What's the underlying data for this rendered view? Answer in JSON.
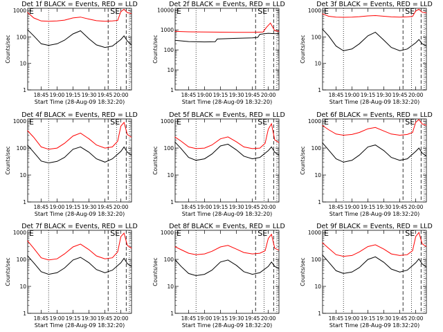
{
  "chart_data": [
    {
      "type": "line",
      "title": "Det 1f BLACK = Events, RED = LLD",
      "xlabel": "Start Time (28-Aug-09 18:32:20)",
      "ylabel": "Counts/sec",
      "xticks": [
        "18:45",
        "19:00",
        "19:15",
        "19:30",
        "19:45",
        "20:00"
      ],
      "yticks": [
        "1",
        "10",
        "100",
        "1000"
      ],
      "ylim": [
        1,
        1200
      ],
      "yscale": "log",
      "annotations": [
        "E",
        "SE"
      ],
      "series": [
        {
          "name": "BLACK = Events",
          "color": "#000000",
          "x": [
            "18:32",
            "18:38",
            "18:45",
            "18:52",
            "19:00",
            "19:07",
            "19:15",
            "19:22",
            "19:30",
            "19:37",
            "19:45",
            "19:52",
            "20:00",
            "20:03",
            "20:06",
            "20:10"
          ],
          "values": [
            190,
            110,
            55,
            48,
            55,
            75,
            130,
            170,
            85,
            50,
            40,
            45,
            80,
            110,
            70,
            50
          ]
        },
        {
          "name": "RED = LLD",
          "color": "#ff0000",
          "x": [
            "18:32",
            "18:38",
            "18:45",
            "18:52",
            "19:00",
            "19:07",
            "19:15",
            "19:22",
            "19:30",
            "19:37",
            "19:45",
            "19:52",
            "19:57",
            "20:00",
            "20:03",
            "20:06",
            "20:10"
          ],
          "values": [
            850,
            520,
            400,
            390,
            400,
            430,
            520,
            560,
            470,
            410,
            390,
            400,
            420,
            900,
            1100,
            820,
            760
          ]
        }
      ]
    },
    {
      "type": "line",
      "title": "Det 2f BLACK = Events, RED = LLD",
      "xlabel": "Start Time (28-Aug-09 18:32:20)",
      "ylabel": "Counts/sec",
      "xticks": [
        "18:45",
        "19:00",
        "19:15",
        "19:30",
        "19:45",
        "20:00"
      ],
      "yticks": [
        "1",
        "10",
        "100",
        "1000",
        "10000"
      ],
      "ylim": [
        1,
        12000
      ],
      "yscale": "log",
      "annotations": [
        "E",
        "SE"
      ],
      "series": [
        {
          "name": "BLACK = Events",
          "color": "#000000",
          "x": [
            "18:32",
            "18:45",
            "19:00",
            "19:10",
            "19:12",
            "19:30",
            "19:45",
            "19:50",
            "19:52",
            "20:00",
            "20:05",
            "20:10"
          ],
          "values": [
            300,
            260,
            250,
            255,
            350,
            380,
            400,
            420,
            600,
            680,
            650,
            640
          ]
        },
        {
          "name": "RED = LLD",
          "color": "#ff0000",
          "x": [
            "18:32",
            "18:45",
            "19:00",
            "19:15",
            "19:30",
            "19:45",
            "19:55",
            "19:58",
            "20:02",
            "20:06",
            "20:10"
          ],
          "values": [
            850,
            800,
            780,
            770,
            760,
            760,
            780,
            1300,
            2200,
            900,
            850
          ]
        }
      ]
    },
    {
      "type": "line",
      "title": "Det 3f BLACK = Events, RED = LLD",
      "xlabel": "Start Time (28-Aug-09 18:32:20)",
      "ylabel": "Counts/sec",
      "xticks": [
        "18:45",
        "19:00",
        "19:15",
        "19:30",
        "19:45",
        "20:00"
      ],
      "yticks": [
        "1",
        "10",
        "100",
        "1000"
      ],
      "ylim": [
        1,
        1200
      ],
      "yscale": "log",
      "annotations": [
        "E",
        "SE"
      ],
      "series": [
        {
          "name": "BLACK = Events",
          "color": "#000000",
          "x": [
            "18:32",
            "18:38",
            "18:45",
            "18:52",
            "19:00",
            "19:07",
            "19:15",
            "19:22",
            "19:30",
            "19:37",
            "19:45",
            "19:52",
            "20:00",
            "20:03",
            "20:06",
            "20:10"
          ],
          "values": [
            200,
            110,
            45,
            30,
            35,
            55,
            110,
            150,
            75,
            40,
            30,
            35,
            60,
            80,
            55,
            45
          ]
        },
        {
          "name": "RED = LLD",
          "color": "#ff0000",
          "x": [
            "18:32",
            "18:38",
            "18:45",
            "18:52",
            "19:00",
            "19:07",
            "19:15",
            "19:22",
            "19:30",
            "19:37",
            "19:45",
            "19:52",
            "19:57",
            "20:00",
            "20:03",
            "20:06",
            "20:10"
          ],
          "values": [
            750,
            600,
            560,
            550,
            560,
            580,
            620,
            640,
            600,
            570,
            560,
            570,
            590,
            950,
            1100,
            850,
            800
          ]
        }
      ]
    },
    {
      "type": "line",
      "title": "Det 4f BLACK = Events, RED = LLD",
      "xlabel": "Start Time (28-Aug-09 18:32:20)",
      "ylabel": "Counts/sec",
      "xticks": [
        "18:45",
        "19:00",
        "19:15",
        "19:30",
        "19:45",
        "20:00"
      ],
      "yticks": [
        "1",
        "10",
        "100",
        "1000"
      ],
      "ylim": [
        1,
        1200
      ],
      "yscale": "log",
      "annotations": [
        "E",
        "SE"
      ],
      "series": [
        {
          "name": "BLACK = Events",
          "color": "#000000",
          "x": [
            "18:32",
            "18:38",
            "18:45",
            "18:52",
            "19:00",
            "19:07",
            "19:15",
            "19:22",
            "19:30",
            "19:37",
            "19:45",
            "19:52",
            "20:00",
            "20:03",
            "20:06",
            "20:10"
          ],
          "values": [
            130,
            70,
            33,
            28,
            32,
            45,
            90,
            110,
            70,
            40,
            30,
            40,
            75,
            110,
            70,
            55
          ]
        },
        {
          "name": "RED = LLD",
          "color": "#ff0000",
          "x": [
            "18:32",
            "18:38",
            "18:45",
            "18:52",
            "19:00",
            "19:07",
            "19:15",
            "19:22",
            "19:30",
            "19:37",
            "19:45",
            "19:52",
            "19:57",
            "20:00",
            "20:03",
            "20:06",
            "20:10"
          ],
          "values": [
            450,
            250,
            110,
            90,
            100,
            150,
            280,
            360,
            220,
            130,
            100,
            110,
            180,
            650,
            900,
            320,
            250
          ]
        }
      ]
    },
    {
      "type": "line",
      "title": "Det 5f BLACK = Events, RED = LLD",
      "xlabel": "Start Time (28-Aug-09 18:32:20)",
      "ylabel": "Counts/sec",
      "xticks": [
        "18:45",
        "19:00",
        "19:15",
        "19:30",
        "19:45",
        "20:00"
      ],
      "yticks": [
        "1",
        "10",
        "100",
        "1000"
      ],
      "ylim": [
        1,
        1200
      ],
      "yscale": "log",
      "annotations": [
        "E",
        "SE"
      ],
      "series": [
        {
          "name": "BLACK = Events",
          "color": "#000000",
          "x": [
            "18:32",
            "18:38",
            "18:45",
            "18:52",
            "19:00",
            "19:07",
            "19:15",
            "19:22",
            "19:30",
            "19:37",
            "19:45",
            "19:52",
            "20:00",
            "20:03",
            "20:06",
            "20:10"
          ],
          "values": [
            170,
            95,
            45,
            35,
            40,
            60,
            120,
            140,
            85,
            50,
            40,
            45,
            80,
            110,
            70,
            55
          ]
        },
        {
          "name": "RED = LLD",
          "color": "#ff0000",
          "x": [
            "18:32",
            "18:38",
            "18:45",
            "18:52",
            "19:00",
            "19:07",
            "19:15",
            "19:22",
            "19:30",
            "19:37",
            "19:45",
            "19:52",
            "19:57",
            "20:00",
            "20:03",
            "20:06",
            "20:10"
          ],
          "values": [
            260,
            180,
            110,
            95,
            100,
            130,
            220,
            260,
            170,
            110,
            95,
            100,
            150,
            500,
            800,
            200,
            160
          ]
        }
      ]
    },
    {
      "type": "line",
      "title": "Det 6f BLACK = Events, RED = LLD",
      "xlabel": "Start Time (28-Aug-09 18:32:20)",
      "ylabel": "Counts/sec",
      "xticks": [
        "18:45",
        "19:00",
        "19:15",
        "19:30",
        "19:45",
        "20:00"
      ],
      "yticks": [
        "1",
        "10",
        "100",
        "1000"
      ],
      "ylim": [
        1,
        1200
      ],
      "yscale": "log",
      "annotations": [
        "E",
        "SE"
      ],
      "series": [
        {
          "name": "BLACK = Events",
          "color": "#000000",
          "x": [
            "18:32",
            "18:38",
            "18:45",
            "18:52",
            "19:00",
            "19:07",
            "19:15",
            "19:22",
            "19:30",
            "19:37",
            "19:45",
            "19:52",
            "20:00",
            "20:03",
            "20:06",
            "20:10"
          ],
          "values": [
            160,
            85,
            40,
            30,
            35,
            55,
            110,
            130,
            80,
            45,
            35,
            40,
            75,
            100,
            65,
            50
          ]
        },
        {
          "name": "RED = LLD",
          "color": "#ff0000",
          "x": [
            "18:32",
            "18:38",
            "18:45",
            "18:52",
            "19:00",
            "19:07",
            "19:15",
            "19:22",
            "19:30",
            "19:37",
            "19:45",
            "19:52",
            "19:57",
            "20:00",
            "20:03",
            "20:06",
            "20:10"
          ],
          "values": [
            700,
            480,
            330,
            300,
            320,
            380,
            520,
            580,
            430,
            330,
            300,
            320,
            380,
            900,
            1150,
            780,
            700
          ]
        }
      ]
    },
    {
      "type": "line",
      "title": "Det 7f BLACK = Events, RED = LLD",
      "xlabel": "Start Time (28-Aug-09 18:32:20)",
      "ylabel": "Counts/sec",
      "xticks": [
        "18:45",
        "19:00",
        "19:15",
        "19:30",
        "19:45",
        "20:00"
      ],
      "yticks": [
        "1",
        "10",
        "100",
        "1000"
      ],
      "ylim": [
        1,
        1200
      ],
      "yscale": "log",
      "annotations": [
        "E",
        "SE"
      ],
      "series": [
        {
          "name": "BLACK = Events",
          "color": "#000000",
          "x": [
            "18:32",
            "18:38",
            "18:45",
            "18:52",
            "19:00",
            "19:07",
            "19:15",
            "19:22",
            "19:30",
            "19:37",
            "19:45",
            "19:52",
            "20:00",
            "20:03",
            "20:06",
            "20:10"
          ],
          "values": [
            140,
            75,
            35,
            28,
            32,
            48,
            95,
            120,
            75,
            42,
            32,
            40,
            75,
            110,
            70,
            55
          ]
        },
        {
          "name": "RED = LLD",
          "color": "#ff0000",
          "x": [
            "18:32",
            "18:38",
            "18:45",
            "18:52",
            "19:00",
            "19:07",
            "19:15",
            "19:22",
            "19:30",
            "19:37",
            "19:45",
            "19:52",
            "19:57",
            "20:00",
            "20:03",
            "20:06",
            "20:10"
          ],
          "values": [
            500,
            260,
            115,
            95,
            105,
            160,
            290,
            370,
            230,
            135,
            105,
            115,
            190,
            700,
            950,
            330,
            260
          ]
        }
      ]
    },
    {
      "type": "line",
      "title": "Det 8f BLACK = Events, RED = LLD",
      "xlabel": "Start Time (28-Aug-09 18:32:20)",
      "ylabel": "Counts/sec",
      "xticks": [
        "18:45",
        "19:00",
        "19:15",
        "19:30",
        "19:45",
        "20:00"
      ],
      "yticks": [
        "1",
        "10",
        "100",
        "1000"
      ],
      "ylim": [
        1,
        1200
      ],
      "yscale": "log",
      "annotations": [
        "E",
        "SE"
      ],
      "series": [
        {
          "name": "BLACK = Events",
          "color": "#000000",
          "x": [
            "18:32",
            "18:38",
            "18:45",
            "18:52",
            "19:00",
            "19:07",
            "19:15",
            "19:22",
            "19:30",
            "19:37",
            "19:45",
            "19:52",
            "20:00",
            "20:03",
            "20:06",
            "20:10"
          ],
          "values": [
            100,
            55,
            30,
            25,
            28,
            40,
            80,
            95,
            60,
            35,
            28,
            32,
            55,
            80,
            55,
            45
          ]
        },
        {
          "name": "RED = LLD",
          "color": "#ff0000",
          "x": [
            "18:32",
            "18:38",
            "18:45",
            "18:52",
            "19:00",
            "19:07",
            "19:15",
            "19:22",
            "19:30",
            "19:37",
            "19:45",
            "19:52",
            "19:57",
            "20:00",
            "20:03",
            "20:06",
            "20:10"
          ],
          "values": [
            300,
            230,
            170,
            150,
            160,
            200,
            290,
            330,
            240,
            180,
            160,
            170,
            210,
            600,
            850,
            260,
            220
          ]
        }
      ]
    },
    {
      "type": "line",
      "title": "Det 9f BLACK = Events, RED = LLD",
      "xlabel": "Start Time (28-Aug-09 18:32:20)",
      "ylabel": "Counts/sec",
      "xticks": [
        "18:45",
        "19:00",
        "19:15",
        "19:30",
        "19:45",
        "20:00"
      ],
      "yticks": [
        "1",
        "10",
        "100",
        "1000"
      ],
      "ylim": [
        1,
        1200
      ],
      "yscale": "log",
      "annotations": [
        "E",
        "SE"
      ],
      "series": [
        {
          "name": "BLACK = Events",
          "color": "#000000",
          "x": [
            "18:32",
            "18:38",
            "18:45",
            "18:52",
            "19:00",
            "19:07",
            "19:15",
            "19:22",
            "19:30",
            "19:37",
            "19:45",
            "19:52",
            "20:00",
            "20:03",
            "20:06",
            "20:10"
          ],
          "values": [
            150,
            80,
            38,
            30,
            34,
            50,
            100,
            125,
            78,
            44,
            34,
            40,
            75,
            105,
            68,
            52
          ]
        },
        {
          "name": "RED = LLD",
          "color": "#ff0000",
          "x": [
            "18:32",
            "18:38",
            "18:45",
            "18:52",
            "19:00",
            "19:07",
            "19:15",
            "19:22",
            "19:30",
            "19:37",
            "19:45",
            "19:52",
            "19:57",
            "20:00",
            "20:03",
            "20:06",
            "20:10"
          ],
          "values": [
            420,
            260,
            150,
            130,
            140,
            190,
            300,
            350,
            240,
            160,
            140,
            150,
            210,
            700,
            1000,
            380,
            300
          ]
        }
      ]
    }
  ]
}
